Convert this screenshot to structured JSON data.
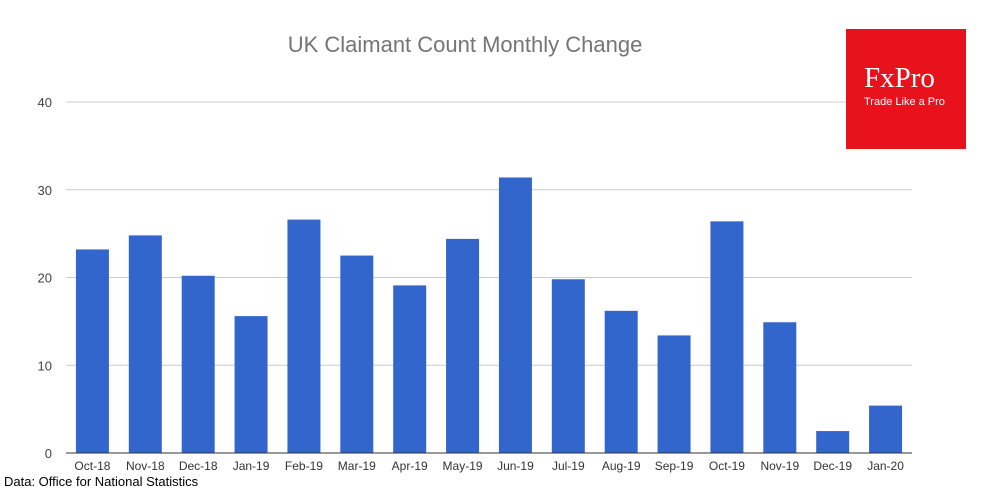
{
  "chart_data": {
    "type": "bar",
    "title": "UK Claimant Count Monthly Change",
    "xlabel": "",
    "ylabel": "",
    "categories": [
      "Oct-18",
      "Nov-18",
      "Dec-18",
      "Jan-19",
      "Feb-19",
      "Mar-19",
      "Apr-19",
      "May-19",
      "Jun-19",
      "Jul-19",
      "Aug-19",
      "Sep-19",
      "Oct-19",
      "Nov-19",
      "Dec-19",
      "Jan-20"
    ],
    "values": [
      23.2,
      24.8,
      20.2,
      15.6,
      26.6,
      22.5,
      19.1,
      24.4,
      31.4,
      19.8,
      16.2,
      13.4,
      26.4,
      14.9,
      2.5,
      5.4
    ],
    "ylim": [
      0,
      40
    ],
    "yticks": [
      0,
      10,
      20,
      30,
      40
    ],
    "grid": true,
    "legend": "none",
    "bar_color": "#3366cc",
    "grid_color": "#cccccc"
  },
  "logo": {
    "name": "FxPro",
    "tagline": "Trade Like a Pro",
    "color": "#e8121d"
  },
  "source_note": "Data: Office for National Statistics"
}
